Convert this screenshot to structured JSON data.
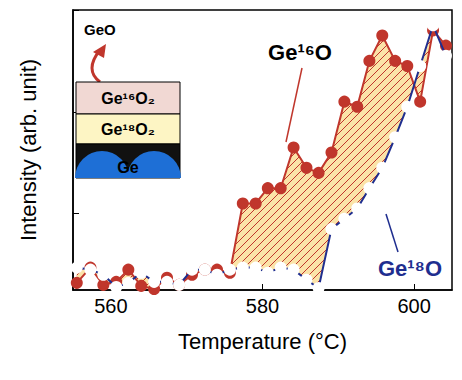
{
  "chart_data": {
    "type": "line",
    "x_label": "Temperature (°C)",
    "y_label": "Intensity (arb. unit)",
    "xlim": [
      555,
      605
    ],
    "xticks": [
      560,
      580,
      600
    ],
    "ylim": [
      0.25,
      3
    ],
    "yticks": [
      1,
      2,
      3
    ],
    "tick_labels": "x",
    "grid": false,
    "x": [
      555.5,
      557.3,
      559.0,
      560.7,
      562.3,
      564.0,
      565.7,
      567.4,
      569.0,
      570.7,
      572.4,
      574.0,
      575.7,
      577.4,
      579.1,
      580.7,
      582.4,
      584.1,
      585.8,
      587.4,
      589.1,
      590.8,
      592.5,
      594.1,
      595.8,
      597.5,
      599.1,
      600.8,
      602.5,
      604.2
    ],
    "series": [
      {
        "name": "Ge¹⁶O",
        "color": "#c0362c",
        "marker": "circle",
        "values": [
          0.32,
          0.47,
          0.3,
          0.33,
          0.45,
          0.29,
          0.26,
          0.37,
          0.3,
          0.4,
          0.45,
          0.45,
          0.42,
          1.1,
          1.1,
          1.25,
          1.25,
          1.65,
          1.45,
          1.4,
          1.6,
          2.1,
          2.05,
          2.5,
          2.75,
          2.5,
          2.45,
          2.1,
          2.8,
          2.65
        ]
      },
      {
        "name": "Ge¹⁸O",
        "color": "#1f2e8f",
        "marker": "open_circle",
        "values": [
          0.47,
          0.45,
          0.4,
          0.28,
          0.32,
          0.42,
          0.33,
          0.33,
          0.3,
          0.45,
          0.45,
          0.4,
          0.45,
          0.47,
          0.47,
          0.42,
          0.47,
          0.45,
          0.35,
          0.27,
          0.85,
          0.95,
          1.05,
          1.25,
          1.45,
          1.75,
          2.05,
          2.45,
          2.85,
          2.55
        ]
      }
    ],
    "inset": {
      "emitted": "GeO",
      "layers": [
        "Ge¹⁶O₂",
        "Ge¹⁸O₂",
        "Ge"
      ]
    }
  }
}
